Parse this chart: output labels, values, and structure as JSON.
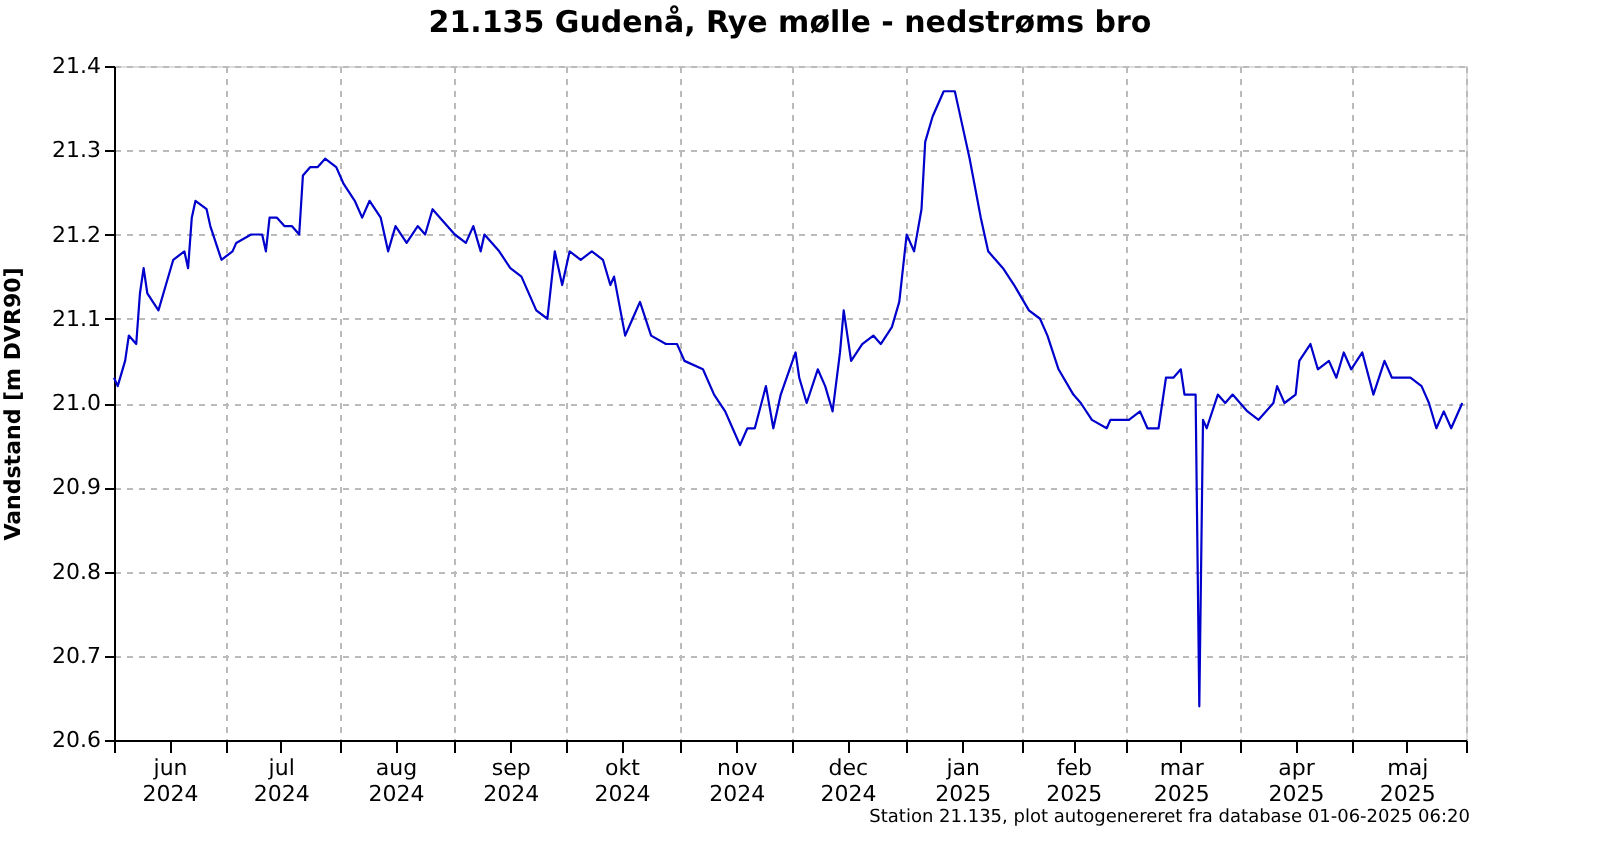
{
  "chart_data": {
    "type": "line",
    "title": "21.135  Gudenå, Rye mølle - nedstrøms bro",
    "ylabel": "Vandstand [m DVR90]",
    "annotations": [
      "Station 21.135, plot autogenereret fra database 01-06-2025 06:20"
    ],
    "x": [
      "2024-06-01",
      "2024-06-02",
      "2024-06-04",
      "2024-06-05",
      "2024-06-07",
      "2024-06-08",
      "2024-06-09",
      "2024-06-10",
      "2024-06-13",
      "2024-06-15",
      "2024-06-17",
      "2024-06-20",
      "2024-06-21",
      "2024-06-22",
      "2024-06-23",
      "2024-06-26",
      "2024-06-27",
      "2024-06-30",
      "2024-07-03",
      "2024-07-04",
      "2024-07-08",
      "2024-07-11",
      "2024-07-12",
      "2024-07-13",
      "2024-07-15",
      "2024-07-17",
      "2024-07-19",
      "2024-07-21",
      "2024-07-22",
      "2024-07-24",
      "2024-07-26",
      "2024-07-28",
      "2024-07-31",
      "2024-08-02",
      "2024-08-05",
      "2024-08-07",
      "2024-08-09",
      "2024-08-12",
      "2024-08-14",
      "2024-08-16",
      "2024-08-19",
      "2024-08-22",
      "2024-08-24",
      "2024-08-26",
      "2024-08-28",
      "2024-09-01",
      "2024-09-04",
      "2024-09-06",
      "2024-09-08",
      "2024-09-09",
      "2024-09-13",
      "2024-09-16",
      "2024-09-19",
      "2024-09-23",
      "2024-09-26",
      "2024-09-27",
      "2024-09-28",
      "2024-09-30",
      "2024-10-02",
      "2024-10-05",
      "2024-10-08",
      "2024-10-11",
      "2024-10-13",
      "2024-10-14",
      "2024-10-17",
      "2024-10-19",
      "2024-10-21",
      "2024-10-24",
      "2024-10-28",
      "2024-10-31",
      "2024-11-02",
      "2024-11-07",
      "2024-11-10",
      "2024-11-13",
      "2024-11-15",
      "2024-11-17",
      "2024-11-19",
      "2024-11-21",
      "2024-11-24",
      "2024-11-26",
      "2024-11-28",
      "2024-12-02",
      "2024-12-03",
      "2024-12-05",
      "2024-12-08",
      "2024-12-10",
      "2024-12-12",
      "2024-12-14",
      "2024-12-15",
      "2024-12-17",
      "2024-12-20",
      "2024-12-23",
      "2024-12-25",
      "2024-12-28",
      "2024-12-30",
      "2025-01-01",
      "2025-01-03",
      "2025-01-05",
      "2025-01-06",
      "2025-01-08",
      "2025-01-11",
      "2025-01-14",
      "2025-01-15",
      "2025-01-18",
      "2025-01-21",
      "2025-01-23",
      "2025-01-27",
      "2025-01-30",
      "2025-02-03",
      "2025-02-06",
      "2025-02-08",
      "2025-02-11",
      "2025-02-15",
      "2025-02-17",
      "2025-02-20",
      "2025-02-24",
      "2025-02-25",
      "2025-03-02",
      "2025-03-05",
      "2025-03-07",
      "2025-03-10",
      "2025-03-12",
      "2025-03-14",
      "2025-03-16",
      "2025-03-17",
      "2025-03-20",
      "2025-03-21",
      "2025-03-22",
      "2025-03-23",
      "2025-03-26",
      "2025-03-28",
      "2025-03-30",
      "2025-04-03",
      "2025-04-06",
      "2025-04-10",
      "2025-04-11",
      "2025-04-13",
      "2025-04-16",
      "2025-04-17",
      "2025-04-20",
      "2025-04-22",
      "2025-04-25",
      "2025-04-27",
      "2025-04-29",
      "2025-05-01",
      "2025-05-04",
      "2025-05-07",
      "2025-05-10",
      "2025-05-12",
      "2025-05-17",
      "2025-05-20",
      "2025-05-22",
      "2025-05-24",
      "2025-05-26",
      "2025-05-28",
      "2025-05-31"
    ],
    "series": [
      {
        "color": "#0000cc",
        "values": [
          21.03,
          21.02,
          21.05,
          21.08,
          21.07,
          21.13,
          21.16,
          21.13,
          21.11,
          21.14,
          21.17,
          21.18,
          21.16,
          21.22,
          21.24,
          21.23,
          21.21,
          21.17,
          21.18,
          21.19,
          21.2,
          21.2,
          21.18,
          21.22,
          21.22,
          21.21,
          21.21,
          21.2,
          21.27,
          21.28,
          21.28,
          21.29,
          21.28,
          21.26,
          21.24,
          21.22,
          21.24,
          21.22,
          21.18,
          21.21,
          21.19,
          21.21,
          21.2,
          21.23,
          21.22,
          21.2,
          21.19,
          21.21,
          21.18,
          21.2,
          21.18,
          21.16,
          21.15,
          21.11,
          21.1,
          21.14,
          21.18,
          21.14,
          21.18,
          21.17,
          21.18,
          21.17,
          21.14,
          21.15,
          21.08,
          21.1,
          21.12,
          21.08,
          21.07,
          21.07,
          21.05,
          21.04,
          21.01,
          20.99,
          20.97,
          20.95,
          20.97,
          20.97,
          21.02,
          20.97,
          21.01,
          21.06,
          21.03,
          21.0,
          21.04,
          21.02,
          20.99,
          21.06,
          21.11,
          21.05,
          21.07,
          21.08,
          21.07,
          21.09,
          21.12,
          21.2,
          21.18,
          21.23,
          21.31,
          21.34,
          21.37,
          21.37,
          21.35,
          21.29,
          21.22,
          21.18,
          21.16,
          21.14,
          21.11,
          21.1,
          21.08,
          21.04,
          21.01,
          21.0,
          20.98,
          20.97,
          20.98,
          20.98,
          20.99,
          20.97,
          20.97,
          21.03,
          21.03,
          21.04,
          21.01,
          21.01,
          20.64,
          20.98,
          20.97,
          21.01,
          21.0,
          21.01,
          20.99,
          20.98,
          21.0,
          21.02,
          21.0,
          21.01,
          21.05,
          21.07,
          21.04,
          21.05,
          21.03,
          21.06,
          21.04,
          21.06,
          21.01,
          21.05,
          21.03,
          21.03,
          21.02,
          21.0,
          20.97,
          20.99,
          20.97,
          21.0
        ]
      }
    ],
    "xlim": [
      "2024-06-01",
      "2025-06-01"
    ],
    "xticks": [
      {
        "value": "2024-06-01",
        "label": null
      },
      {
        "value": "2024-06-16",
        "label": "jun 2024"
      },
      {
        "value": "2024-07-01",
        "label": null
      },
      {
        "value": "2024-07-16",
        "label": "jul 2024"
      },
      {
        "value": "2024-08-01",
        "label": null
      },
      {
        "value": "2024-08-16",
        "label": "aug 2024"
      },
      {
        "value": "2024-09-01",
        "label": null
      },
      {
        "value": "2024-09-16",
        "label": "sep 2024"
      },
      {
        "value": "2024-10-01",
        "label": null
      },
      {
        "value": "2024-10-16",
        "label": "okt 2024"
      },
      {
        "value": "2024-11-01",
        "label": null
      },
      {
        "value": "2024-11-16",
        "label": "nov 2024"
      },
      {
        "value": "2024-12-01",
        "label": null
      },
      {
        "value": "2024-12-16",
        "label": "dec 2024"
      },
      {
        "value": "2025-01-01",
        "label": null
      },
      {
        "value": "2025-01-16",
        "label": "jan 2025"
      },
      {
        "value": "2025-02-01",
        "label": null
      },
      {
        "value": "2025-02-15",
        "label": "feb 2025"
      },
      {
        "value": "2025-03-01",
        "label": null
      },
      {
        "value": "2025-03-16",
        "label": "mar 2025"
      },
      {
        "value": "2025-04-01",
        "label": null
      },
      {
        "value": "2025-04-16",
        "label": "apr 2025"
      },
      {
        "value": "2025-05-01",
        "label": null
      },
      {
        "value": "2025-05-16",
        "label": "maj 2025"
      },
      {
        "value": "2025-06-01",
        "label": null
      }
    ],
    "ylim": [
      20.6,
      21.4
    ],
    "yticks": [
      {
        "value": 20.6,
        "label": "20.6"
      },
      {
        "value": 20.7,
        "label": "20.7"
      },
      {
        "value": 20.8,
        "label": "20.8"
      },
      {
        "value": 20.9,
        "label": "20.9"
      },
      {
        "value": 21.0,
        "label": "21.0"
      },
      {
        "value": 21.1,
        "label": "21.1"
      },
      {
        "value": 21.2,
        "label": "21.2"
      },
      {
        "value": 21.3,
        "label": "21.3"
      },
      {
        "value": 21.4,
        "label": "21.4"
      }
    ],
    "grid": true,
    "legend": false,
    "marker": "none",
    "line_style": "solid"
  }
}
